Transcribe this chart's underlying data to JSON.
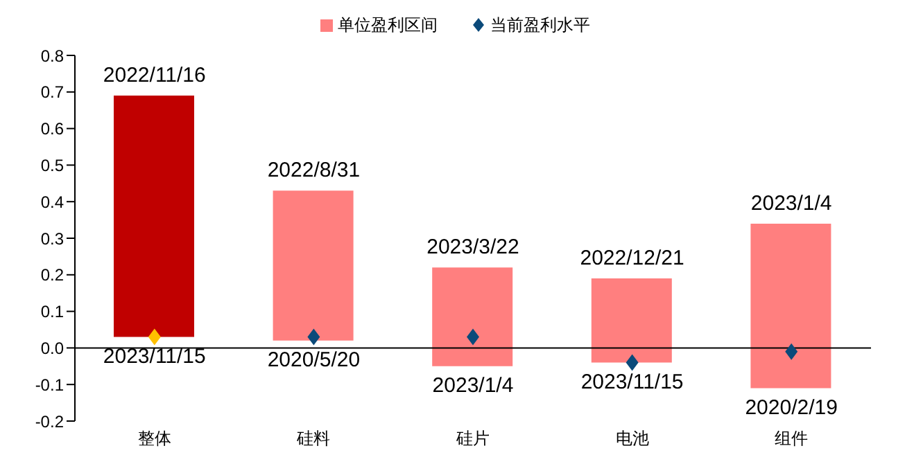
{
  "chart_data": {
    "type": "bar",
    "categories": [
      "整体",
      "硅料",
      "硅片",
      "电池",
      "组件"
    ],
    "series": [
      {
        "name": "单位盈利区间",
        "colors": [
          "#c00000",
          "#ff7f7f",
          "#ff7f7f",
          "#ff7f7f",
          "#ff7f7f"
        ],
        "base": [
          0.03,
          0.02,
          -0.05,
          -0.04,
          -0.11
        ],
        "values": [
          0.66,
          0.41,
          0.27,
          0.23,
          0.45
        ]
      },
      {
        "name": "当前盈利水平",
        "type": "scatter",
        "x": [
          "整体",
          "硅料",
          "硅片",
          "电池",
          "组件"
        ],
        "colors": [
          "#ffc000",
          "#0b4a7a",
          "#0b4a7a",
          "#0b4a7a",
          "#0b4a7a"
        ],
        "values": [
          0.03,
          0.03,
          0.03,
          -0.04,
          -0.01
        ]
      }
    ],
    "marker": "diamond",
    "ylim": [
      -0.2,
      0.8
    ],
    "yticks": [
      -0.2,
      -0.1,
      {
        "value": 0,
        "label": "0.0"
      },
      0.1,
      0.2,
      0.3,
      0.4,
      0.5,
      0.6,
      0.7,
      0.8
    ],
    "legend": "top",
    "annotations": [
      {
        "text": "2022/11/16",
        "x": "整体",
        "y": 0.69
      },
      {
        "text": "2023/11/15",
        "x": "整体",
        "y": 0.03
      },
      {
        "text": "2022/8/31",
        "x": "硅料",
        "y": 0.43
      },
      {
        "text": "2020/5/20",
        "x": "硅料",
        "y": 0.02
      },
      {
        "text": "2023/3/22",
        "x": "硅片",
        "y": 0.22
      },
      {
        "text": "2023/1/4",
        "x": "硅片",
        "y": -0.05
      },
      {
        "text": "2022/12/21",
        "x": "电池",
        "y": 0.19
      },
      {
        "text": "2023/11/15",
        "x": "电池",
        "y": -0.04
      },
      {
        "text": "2023/1/4",
        "x": "组件",
        "y": 0.34
      },
      {
        "text": "2020/2/19",
        "x": "组件",
        "y": -0.11
      }
    ]
  }
}
